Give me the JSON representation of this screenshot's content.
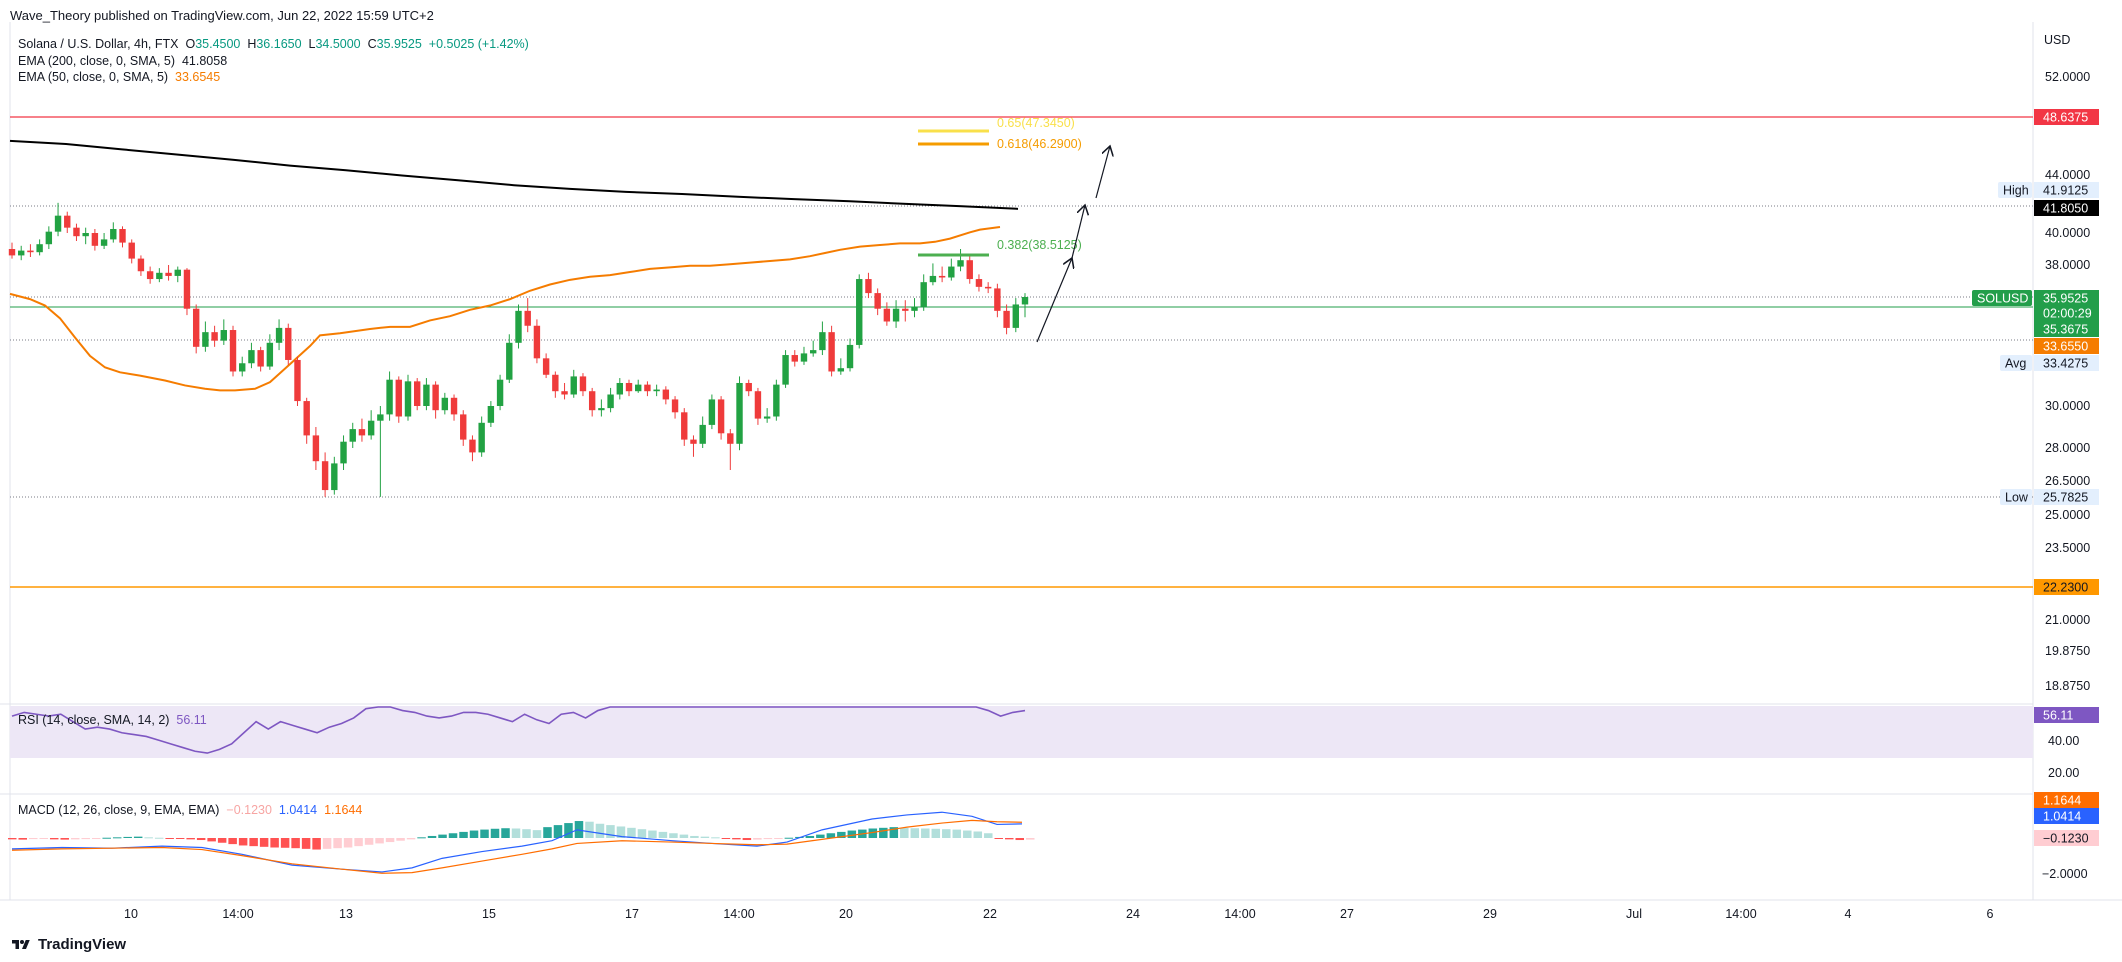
{
  "publisher": "Wave_Theory published on TradingView.com, Jun 22, 2022 15:59 UTC+2",
  "brand": "TradingView",
  "symbol_line": {
    "name": "Solana / U.S. Dollar, 4h, FTX",
    "o_label": "O",
    "o": "35.4500",
    "h_label": "H",
    "h": "36.1650",
    "l_label": "L",
    "l": "34.5000",
    "c_label": "C",
    "c": "35.9525",
    "change": "+0.5025 (+1.42%)"
  },
  "ema200_label": "EMA (200, close, 0, SMA, 5)",
  "ema200_value": "41.8058",
  "ema50_label": "EMA (50, close, 0, SMA, 5)",
  "ema50_value": "33.6545",
  "rsi_label": "RSI (14, close, SMA, 14, 2)",
  "rsi_value": "56.11",
  "macd_label": "MACD (12, 26, close, 9, EMA, EMA)",
  "macd_hist": "−0.1230",
  "macd_line": "1.0414",
  "macd_signal": "1.1644",
  "colors": {
    "up": "#26a69a",
    "down": "#ef5350",
    "ema200": "#000000",
    "ema50": "#f57c00",
    "rsi": "#7e57c2",
    "rsi_band": "#ede7f6",
    "macd": "#2962ff",
    "signal": "#ff6d00",
    "price": "#229e4a",
    "red_line": "#f23645",
    "orange_line": "#ff9800"
  },
  "chart_data": {
    "type": "candlestick",
    "currency": "USD",
    "y_ticks": [
      "52.0000",
      "44.0000",
      "40.0000",
      "38.0000",
      "30.0000",
      "28.0000",
      "26.5000",
      "25.0000",
      "23.5000",
      "21.0000",
      "19.8750",
      "18.8750"
    ],
    "x_ticks": [
      "10",
      "14:00",
      "13",
      "15",
      "17",
      "14:00",
      "20",
      "22",
      "24",
      "14:00",
      "27",
      "29",
      "Jul",
      "14:00",
      "4",
      "6"
    ],
    "price_labels": {
      "red": "48.6375",
      "high": "41.9125",
      "ema200": "41.8050",
      "last": "35.9525",
      "countdown": "02:00:29",
      "green": "35.3675",
      "ema50": "33.6550",
      "avg": "33.4275",
      "low": "25.7825",
      "orange": "22.2300"
    },
    "badges": {
      "high": "High",
      "avg": "Avg",
      "low": "Low",
      "symbol": "SOLUSD"
    },
    "fib": [
      {
        "label": "0.65(47.3450)",
        "value": 47.345
      },
      {
        "label": "0.618(46.2900)",
        "value": 46.29
      },
      {
        "label": "0.382(38.5125)",
        "value": 38.5125
      }
    ],
    "candles": [
      [
        39.0,
        38.6,
        39.4,
        38.4
      ],
      [
        38.6,
        38.9,
        39.2,
        38.3
      ],
      [
        38.9,
        38.8,
        39.3,
        38.5
      ],
      [
        38.8,
        39.3,
        39.6,
        38.6
      ],
      [
        39.3,
        40.1,
        40.5,
        39.0
      ],
      [
        40.1,
        41.3,
        42.2,
        39.8
      ],
      [
        41.3,
        40.4,
        41.6,
        40.0
      ],
      [
        40.4,
        39.8,
        40.7,
        39.5
      ],
      [
        39.8,
        40.0,
        40.4,
        39.3
      ],
      [
        40.0,
        39.2,
        40.3,
        38.9
      ],
      [
        39.2,
        39.6,
        40.0,
        39.0
      ],
      [
        39.6,
        40.3,
        40.8,
        39.4
      ],
      [
        40.3,
        39.4,
        40.5,
        39.1
      ],
      [
        39.4,
        38.4,
        39.6,
        38.1
      ],
      [
        38.4,
        37.6,
        38.6,
        37.3
      ],
      [
        37.6,
        37.1,
        37.9,
        36.8
      ],
      [
        37.1,
        37.5,
        37.8,
        36.9
      ],
      [
        37.5,
        37.3,
        38.0,
        37.0
      ],
      [
        37.3,
        37.7,
        37.9,
        36.9
      ],
      [
        37.7,
        35.4,
        37.8,
        35.1
      ],
      [
        35.4,
        33.6,
        35.6,
        33.2
      ],
      [
        33.6,
        34.3,
        34.8,
        33.3
      ],
      [
        34.3,
        33.9,
        34.6,
        33.6
      ],
      [
        33.9,
        34.4,
        34.9,
        33.7
      ],
      [
        34.4,
        32.1,
        34.6,
        31.8
      ],
      [
        32.1,
        32.6,
        33.0,
        31.8
      ],
      [
        32.6,
        33.4,
        33.8,
        32.3
      ],
      [
        33.4,
        32.4,
        33.6,
        32.1
      ],
      [
        32.4,
        33.8,
        34.2,
        32.2
      ],
      [
        33.8,
        34.5,
        34.9,
        33.4
      ],
      [
        34.5,
        32.8,
        34.7,
        32.5
      ],
      [
        32.8,
        30.3,
        33.0,
        30.0
      ],
      [
        30.3,
        28.6,
        30.5,
        28.2
      ],
      [
        28.6,
        27.4,
        29.0,
        27.0
      ],
      [
        27.4,
        26.1,
        27.8,
        25.8
      ],
      [
        26.1,
        27.3,
        27.6,
        25.9
      ],
      [
        27.3,
        28.3,
        28.6,
        27.0
      ],
      [
        28.3,
        28.9,
        29.2,
        28.0
      ],
      [
        28.9,
        28.6,
        29.4,
        28.3
      ],
      [
        28.6,
        29.3,
        29.8,
        28.4
      ],
      [
        29.3,
        29.6,
        30.0,
        25.8
      ],
      [
        29.6,
        31.6,
        32.1,
        29.3
      ],
      [
        31.6,
        29.5,
        31.8,
        29.2
      ],
      [
        29.5,
        31.5,
        31.9,
        29.3
      ],
      [
        31.5,
        30.0,
        31.7,
        29.8
      ],
      [
        30.0,
        31.3,
        31.7,
        29.8
      ],
      [
        31.3,
        29.8,
        31.5,
        29.4
      ],
      [
        29.8,
        30.5,
        30.8,
        29.6
      ],
      [
        30.5,
        29.6,
        30.7,
        29.3
      ],
      [
        29.6,
        28.4,
        29.8,
        28.1
      ],
      [
        28.4,
        27.8,
        28.6,
        27.4
      ],
      [
        27.8,
        29.2,
        29.5,
        27.6
      ],
      [
        29.2,
        30.0,
        30.3,
        29.0
      ],
      [
        30.0,
        31.6,
        31.9,
        29.8
      ],
      [
        31.6,
        33.8,
        34.2,
        31.4
      ],
      [
        33.8,
        35.3,
        35.6,
        33.5
      ],
      [
        35.3,
        34.6,
        35.9,
        34.3
      ],
      [
        34.6,
        32.9,
        34.9,
        32.6
      ],
      [
        32.9,
        31.9,
        33.2,
        31.7
      ],
      [
        31.9,
        30.9,
        32.1,
        30.5
      ],
      [
        30.9,
        30.7,
        31.4,
        30.4
      ],
      [
        30.7,
        31.8,
        32.2,
        30.5
      ],
      [
        31.8,
        30.9,
        32.0,
        30.6
      ],
      [
        30.9,
        29.8,
        31.1,
        29.5
      ],
      [
        29.8,
        29.9,
        30.4,
        29.5
      ],
      [
        29.9,
        30.7,
        31.1,
        29.7
      ],
      [
        30.7,
        31.4,
        31.7,
        30.4
      ],
      [
        31.4,
        30.9,
        31.6,
        30.6
      ],
      [
        30.9,
        31.3,
        31.6,
        30.8
      ],
      [
        31.3,
        30.9,
        31.5,
        30.6
      ],
      [
        30.9,
        31.0,
        31.3,
        30.6
      ],
      [
        31.0,
        30.4,
        31.2,
        30.1
      ],
      [
        30.4,
        29.7,
        30.6,
        29.4
      ],
      [
        29.7,
        28.4,
        29.9,
        28.1
      ],
      [
        28.4,
        28.2,
        28.6,
        27.6
      ],
      [
        28.2,
        29.1,
        29.5,
        28.0
      ],
      [
        29.1,
        30.4,
        30.7,
        28.9
      ],
      [
        30.4,
        28.7,
        30.6,
        28.4
      ],
      [
        28.7,
        28.2,
        28.9,
        27.0
      ],
      [
        28.2,
        31.4,
        31.8,
        27.9
      ],
      [
        31.4,
        30.9,
        31.6,
        30.6
      ],
      [
        30.9,
        29.4,
        31.1,
        29.1
      ],
      [
        29.4,
        29.5,
        29.9,
        29.2
      ],
      [
        29.5,
        31.3,
        31.6,
        29.3
      ],
      [
        31.3,
        33.1,
        33.4,
        31.1
      ],
      [
        33.1,
        32.7,
        33.4,
        32.4
      ],
      [
        32.7,
        33.2,
        33.6,
        32.5
      ],
      [
        33.2,
        33.4,
        33.9,
        33.0
      ],
      [
        33.4,
        34.3,
        34.8,
        33.1
      ],
      [
        34.3,
        32.1,
        34.6,
        31.8
      ],
      [
        32.1,
        32.3,
        32.9,
        31.9
      ],
      [
        32.3,
        33.7,
        34.0,
        32.1
      ],
      [
        33.7,
        37.1,
        37.4,
        33.5
      ],
      [
        37.1,
        36.2,
        37.5,
        35.9
      ],
      [
        36.2,
        35.4,
        36.5,
        35.1
      ],
      [
        35.4,
        34.8,
        35.7,
        34.6
      ],
      [
        34.8,
        35.4,
        35.8,
        34.5
      ],
      [
        35.4,
        35.3,
        35.8,
        34.8
      ],
      [
        35.3,
        35.5,
        35.9,
        35.0
      ],
      [
        35.5,
        36.9,
        37.4,
        35.3
      ],
      [
        36.9,
        37.3,
        38.1,
        36.7
      ],
      [
        37.3,
        37.2,
        37.9,
        36.9
      ],
      [
        37.2,
        37.9,
        38.4,
        37.0
      ],
      [
        37.9,
        38.3,
        39.0,
        37.6
      ],
      [
        38.3,
        37.1,
        38.7,
        36.8
      ],
      [
        37.1,
        36.6,
        37.4,
        36.3
      ],
      [
        36.6,
        36.5,
        36.9,
        36.2
      ],
      [
        36.5,
        35.3,
        36.8,
        35.0
      ],
      [
        35.3,
        34.5,
        35.6,
        34.2
      ],
      [
        34.5,
        35.6,
        35.9,
        34.3
      ],
      [
        35.6,
        35.95,
        36.2,
        35.0
      ]
    ],
    "ema50": [
      [
        0,
        36.15
      ],
      [
        20,
        35.85
      ],
      [
        35,
        35.55
      ],
      [
        50,
        34.95
      ],
      [
        65,
        34.05
      ],
      [
        80,
        33.05
      ],
      [
        95,
        32.35
      ],
      [
        110,
        32.05
      ],
      [
        130,
        31.85
      ],
      [
        155,
        31.55
      ],
      [
        175,
        31.25
      ],
      [
        195,
        31.05
      ],
      [
        210,
        30.95
      ],
      [
        225,
        30.95
      ],
      [
        245,
        31.05
      ],
      [
        260,
        31.45
      ],
      [
        280,
        32.55
      ],
      [
        300,
        33.65
      ],
      [
        310,
        34.15
      ],
      [
        330,
        34.25
      ],
      [
        360,
        34.45
      ],
      [
        380,
        34.55
      ],
      [
        400,
        34.55
      ],
      [
        420,
        34.85
      ],
      [
        440,
        35.05
      ],
      [
        460,
        35.35
      ],
      [
        480,
        35.55
      ],
      [
        500,
        35.85
      ],
      [
        520,
        36.35
      ],
      [
        540,
        36.75
      ],
      [
        560,
        37.05
      ],
      [
        580,
        37.25
      ],
      [
        600,
        37.35
      ],
      [
        620,
        37.55
      ],
      [
        640,
        37.75
      ],
      [
        660,
        37.85
      ],
      [
        680,
        37.95
      ],
      [
        700,
        37.95
      ],
      [
        720,
        38.05
      ],
      [
        740,
        38.15
      ],
      [
        760,
        38.25
      ],
      [
        780,
        38.35
      ],
      [
        800,
        38.55
      ],
      [
        815,
        38.75
      ],
      [
        830,
        38.95
      ],
      [
        850,
        39.15
      ],
      [
        870,
        39.25
      ],
      [
        890,
        39.35
      ],
      [
        910,
        39.35
      ],
      [
        925,
        39.45
      ],
      [
        940,
        39.65
      ],
      [
        960,
        40.05
      ],
      [
        970,
        40.25
      ],
      [
        990,
        40.45
      ]
    ],
    "ema200": [
      [
        0,
        46.73
      ],
      [
        35,
        46.48
      ],
      [
        70,
        46.05
      ],
      [
        105,
        45.63
      ],
      [
        140,
        45.21
      ],
      [
        175,
        44.75
      ],
      [
        210,
        44.38
      ],
      [
        245,
        43.97
      ],
      [
        280,
        43.66
      ],
      [
        315,
        43.34
      ],
      [
        350,
        43.1
      ],
      [
        385,
        42.91
      ],
      [
        420,
        42.77
      ],
      [
        455,
        42.59
      ],
      [
        490,
        42.44
      ],
      [
        525,
        42.3
      ],
      [
        560,
        42.13
      ],
      [
        595,
        41.98
      ],
      [
        630,
        41.81
      ]
    ],
    "rsi": [
      54,
      56,
      55,
      54,
      55,
      51,
      47,
      48,
      47,
      45,
      44,
      43,
      41,
      39,
      37,
      35,
      34,
      36,
      39,
      45,
      51,
      47,
      51,
      49,
      47,
      45,
      48,
      50,
      53,
      58,
      66,
      61,
      57,
      56,
      54,
      53,
      54,
      56,
      56,
      55,
      53,
      51,
      55,
      52,
      50,
      55,
      56,
      53,
      57,
      60,
      63,
      61,
      65,
      62,
      62,
      66,
      71,
      68,
      66,
      67,
      66,
      65,
      64,
      61,
      66,
      69,
      70,
      74,
      76,
      71,
      65,
      66,
      68,
      63,
      63,
      64,
      63,
      62,
      61,
      61,
      57,
      54,
      56,
      57
    ],
    "macd": [
      [
        0,
        -0.8
      ],
      [
        50,
        -0.7
      ],
      [
        100,
        -0.75
      ],
      [
        150,
        -0.6
      ],
      [
        190,
        -0.7
      ],
      [
        230,
        -1.2
      ],
      [
        280,
        -2.0
      ],
      [
        330,
        -2.3
      ],
      [
        370,
        -2.5
      ],
      [
        400,
        -2.2
      ],
      [
        430,
        -1.5
      ],
      [
        470,
        -1.0
      ],
      [
        510,
        -0.6
      ],
      [
        540,
        -0.2
      ],
      [
        565,
        0.6
      ],
      [
        610,
        0.1
      ],
      [
        660,
        -0.2
      ],
      [
        700,
        -0.4
      ],
      [
        745,
        -0.6
      ],
      [
        775,
        -0.3
      ],
      [
        810,
        0.6
      ],
      [
        860,
        1.4
      ],
      [
        895,
        1.7
      ],
      [
        930,
        1.9
      ],
      [
        960,
        1.6
      ],
      [
        985,
        1.0
      ],
      [
        1010,
        1.04
      ]
    ],
    "signal": [
      [
        0,
        -0.9
      ],
      [
        50,
        -0.8
      ],
      [
        100,
        -0.75
      ],
      [
        150,
        -0.7
      ],
      [
        190,
        -0.85
      ],
      [
        230,
        -1.3
      ],
      [
        280,
        -1.9
      ],
      [
        330,
        -2.3
      ],
      [
        370,
        -2.6
      ],
      [
        400,
        -2.55
      ],
      [
        430,
        -2.2
      ],
      [
        470,
        -1.7
      ],
      [
        510,
        -1.2
      ],
      [
        540,
        -0.8
      ],
      [
        565,
        -0.4
      ],
      [
        610,
        -0.2
      ],
      [
        660,
        -0.3
      ],
      [
        700,
        -0.4
      ],
      [
        745,
        -0.5
      ],
      [
        775,
        -0.45
      ],
      [
        810,
        -0.1
      ],
      [
        860,
        0.4
      ],
      [
        895,
        0.8
      ],
      [
        930,
        1.1
      ],
      [
        960,
        1.3
      ],
      [
        985,
        1.2
      ],
      [
        1010,
        1.16
      ]
    ],
    "macd_hist": [
      -0.1,
      -0.12,
      -0.08,
      -0.05,
      -0.1,
      -0.12,
      -0.1,
      -0.08,
      -0.05,
      0.02,
      0.05,
      0.08,
      0.1,
      0.05,
      0.02,
      -0.02,
      -0.05,
      -0.1,
      -0.15,
      -0.25,
      -0.35,
      -0.45,
      -0.55,
      -0.6,
      -0.65,
      -0.7,
      -0.72,
      -0.75,
      -0.8,
      -0.85,
      -0.8,
      -0.75,
      -0.7,
      -0.6,
      -0.5,
      -0.4,
      -0.3,
      -0.2,
      -0.1,
      0.05,
      0.15,
      0.25,
      0.35,
      0.45,
      0.55,
      0.62,
      0.68,
      0.72,
      0.7,
      0.65,
      0.58,
      0.8,
      0.95,
      1.1,
      1.25,
      1.2,
      1.05,
      0.95,
      0.85,
      0.75,
      0.65,
      0.55,
      0.45,
      0.35,
      0.25,
      0.15,
      0.1,
      0.05,
      -0.05,
      -0.1,
      -0.15,
      -0.12,
      -0.08,
      -0.05,
      0.02,
      0.08,
      0.15,
      0.25,
      0.35,
      0.45,
      0.55,
      0.62,
      0.7,
      0.75,
      0.8,
      0.75,
      0.72,
      0.7,
      0.68,
      0.65,
      0.62,
      0.55,
      0.48,
      0.35,
      -0.05,
      -0.1,
      -0.15,
      -0.12
    ]
  }
}
